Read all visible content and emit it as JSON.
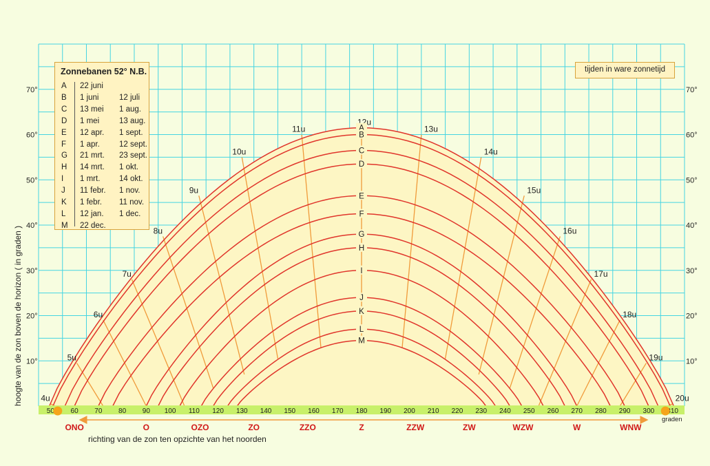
{
  "legend": {
    "title": "Zonnebanen 52° N.B.",
    "rows": [
      {
        "key": "A",
        "d1": "22 juni",
        "d2": ""
      },
      {
        "key": "B",
        "d1": "1 juni",
        "d2": "12 juli"
      },
      {
        "key": "C",
        "d1": "13 mei",
        "d2": "1 aug."
      },
      {
        "key": "D",
        "d1": "1 mei",
        "d2": "13 aug."
      },
      {
        "key": "E",
        "d1": "12 apr.",
        "d2": "1 sept."
      },
      {
        "key": "F",
        "d1": "1 apr.",
        "d2": "12 sept."
      },
      {
        "key": "G",
        "d1": "21 mrt.",
        "d2": "23 sept."
      },
      {
        "key": "H",
        "d1": "14 mrt.",
        "d2": "1 okt."
      },
      {
        "key": "I",
        "d1": "1 mrt.",
        "d2": "14 okt."
      },
      {
        "key": "J",
        "d1": "11 febr.",
        "d2": "1 nov."
      },
      {
        "key": "K",
        "d1": "1 febr.",
        "d2": "11 nov."
      },
      {
        "key": "L",
        "d1": "12 jan.",
        "d2": "1 dec."
      },
      {
        "key": "M",
        "d1": "22 dec.",
        "d2": ""
      }
    ]
  },
  "note": "tijden in ware zonnetijd",
  "ylabel": "hoogte van de zon boven de horizon ( in graden )",
  "xlabel": "richting van de zon ten opzichte van het noorden",
  "x_unit": "graden",
  "colors": {
    "curve": "#e0352b",
    "hour_line": "#f09a3a",
    "grid": "#44d4e2",
    "fill": "#fdf6c4",
    "axis_band": "#c8f06a",
    "compass_text": "#d01818",
    "sun_marker": "#f5a51c"
  },
  "chart_data": {
    "type": "line",
    "title": "Zonnebanen 52° N.B.",
    "xlabel": "richting van de zon ten opzichte van het noorden",
    "ylabel": "hoogte van de zon boven de horizon ( in graden )",
    "xlim": [
      45,
      315
    ],
    "ylim": [
      0,
      80
    ],
    "grid": true,
    "x_ticks": [
      50,
      60,
      70,
      80,
      90,
      100,
      110,
      120,
      130,
      140,
      150,
      160,
      170,
      180,
      190,
      200,
      210,
      220,
      230,
      240,
      250,
      260,
      270,
      280,
      290,
      300,
      310
    ],
    "y_ticks": [
      {
        "value": 10,
        "label": "10°"
      },
      {
        "value": 20,
        "label": "20°"
      },
      {
        "value": 30,
        "label": "30°"
      },
      {
        "value": 40,
        "label": "40°"
      },
      {
        "value": 50,
        "label": "50°"
      },
      {
        "value": 60,
        "label": "60°"
      },
      {
        "value": 70,
        "label": "70°"
      }
    ],
    "compass": [
      {
        "label": "ONO",
        "azimuth": 60
      },
      {
        "label": "O",
        "azimuth": 90
      },
      {
        "label": "OZO",
        "azimuth": 112.5
      },
      {
        "label": "ZO",
        "azimuth": 135
      },
      {
        "label": "ZZO",
        "azimuth": 157.5
      },
      {
        "label": "Z",
        "azimuth": 180
      },
      {
        "label": "ZZW",
        "azimuth": 202.5
      },
      {
        "label": "ZW",
        "azimuth": 225
      },
      {
        "label": "WZW",
        "azimuth": 247.5
      },
      {
        "label": "W",
        "azimuth": 270
      },
      {
        "label": "WNW",
        "azimuth": 292.5
      }
    ],
    "sun_markers": [
      {
        "azimuth": 53
      },
      {
        "azimuth": 307
      }
    ],
    "series": [
      {
        "name": "A",
        "noon_altitude": 61.5,
        "rise_azimuth": 49.5
      },
      {
        "name": "B",
        "noon_altitude": 60,
        "rise_azimuth": 51
      },
      {
        "name": "C",
        "noon_altitude": 56.5,
        "rise_azimuth": 56
      },
      {
        "name": "D",
        "noon_altitude": 53.5,
        "rise_azimuth": 60
      },
      {
        "name": "E",
        "noon_altitude": 46.5,
        "rise_azimuth": 70
      },
      {
        "name": "F",
        "noon_altitude": 42.5,
        "rise_azimuth": 76
      },
      {
        "name": "G",
        "noon_altitude": 38,
        "rise_azimuth": 90
      },
      {
        "name": "H",
        "noon_altitude": 35,
        "rise_azimuth": 95
      },
      {
        "name": "I",
        "noon_altitude": 30,
        "rise_azimuth": 104
      },
      {
        "name": "J",
        "noon_altitude": 24,
        "rise_azimuth": 113
      },
      {
        "name": "K",
        "noon_altitude": 21,
        "rise_azimuth": 118
      },
      {
        "name": "L",
        "noon_altitude": 17,
        "rise_azimuth": 124
      },
      {
        "name": "M",
        "noon_altitude": 14.5,
        "rise_azimuth": 128
      }
    ],
    "hour_lines": [
      {
        "label": "4u",
        "top_azimuth": 50,
        "top_altitude": 0.5,
        "bottom_azimuth": 52,
        "bottom_altitude": 0
      },
      {
        "label": "5u",
        "top_azimuth": 61,
        "top_altitude": 9.5,
        "bottom_azimuth": 72,
        "bottom_altitude": 0
      },
      {
        "label": "6u",
        "top_azimuth": 72,
        "top_altitude": 19,
        "bottom_azimuth": 90,
        "bottom_altitude": 0
      },
      {
        "label": "7u",
        "top_azimuth": 84,
        "top_altitude": 28,
        "bottom_azimuth": 106,
        "bottom_altitude": 0
      },
      {
        "label": "8u",
        "top_azimuth": 97,
        "top_altitude": 37.5,
        "bottom_azimuth": 118,
        "bottom_altitude": 4
      },
      {
        "label": "9u",
        "top_azimuth": 112,
        "top_altitude": 46.5,
        "bottom_azimuth": 131,
        "bottom_altitude": 7
      },
      {
        "label": "10u",
        "top_azimuth": 130,
        "top_altitude": 55,
        "bottom_azimuth": 145,
        "bottom_altitude": 10.5
      },
      {
        "label": "11u",
        "top_azimuth": 155,
        "top_altitude": 60,
        "bottom_azimuth": 163,
        "bottom_altitude": 13
      },
      {
        "label": "12u",
        "top_azimuth": 180,
        "top_altitude": 61.5,
        "bottom_azimuth": 180,
        "bottom_altitude": 14.5
      },
      {
        "label": "13u",
        "top_azimuth": 205,
        "top_altitude": 60,
        "bottom_azimuth": 197,
        "bottom_altitude": 13
      },
      {
        "label": "14u",
        "top_azimuth": 230,
        "top_altitude": 55,
        "bottom_azimuth": 215,
        "bottom_altitude": 10.5
      },
      {
        "label": "15u",
        "top_azimuth": 248,
        "top_altitude": 46.5,
        "bottom_azimuth": 229,
        "bottom_altitude": 7
      },
      {
        "label": "16u",
        "top_azimuth": 263,
        "top_altitude": 37.5,
        "bottom_azimuth": 242,
        "bottom_altitude": 4
      },
      {
        "label": "17u",
        "top_azimuth": 276,
        "top_altitude": 28,
        "bottom_azimuth": 254,
        "bottom_altitude": 0
      },
      {
        "label": "18u",
        "top_azimuth": 288,
        "top_altitude": 19,
        "bottom_azimuth": 270,
        "bottom_altitude": 0
      },
      {
        "label": "19u",
        "top_azimuth": 299,
        "top_altitude": 9.5,
        "bottom_azimuth": 288,
        "bottom_altitude": 0
      },
      {
        "label": "20u",
        "top_azimuth": 310,
        "top_altitude": 0.5,
        "bottom_azimuth": 308,
        "bottom_altitude": 0
      }
    ]
  }
}
